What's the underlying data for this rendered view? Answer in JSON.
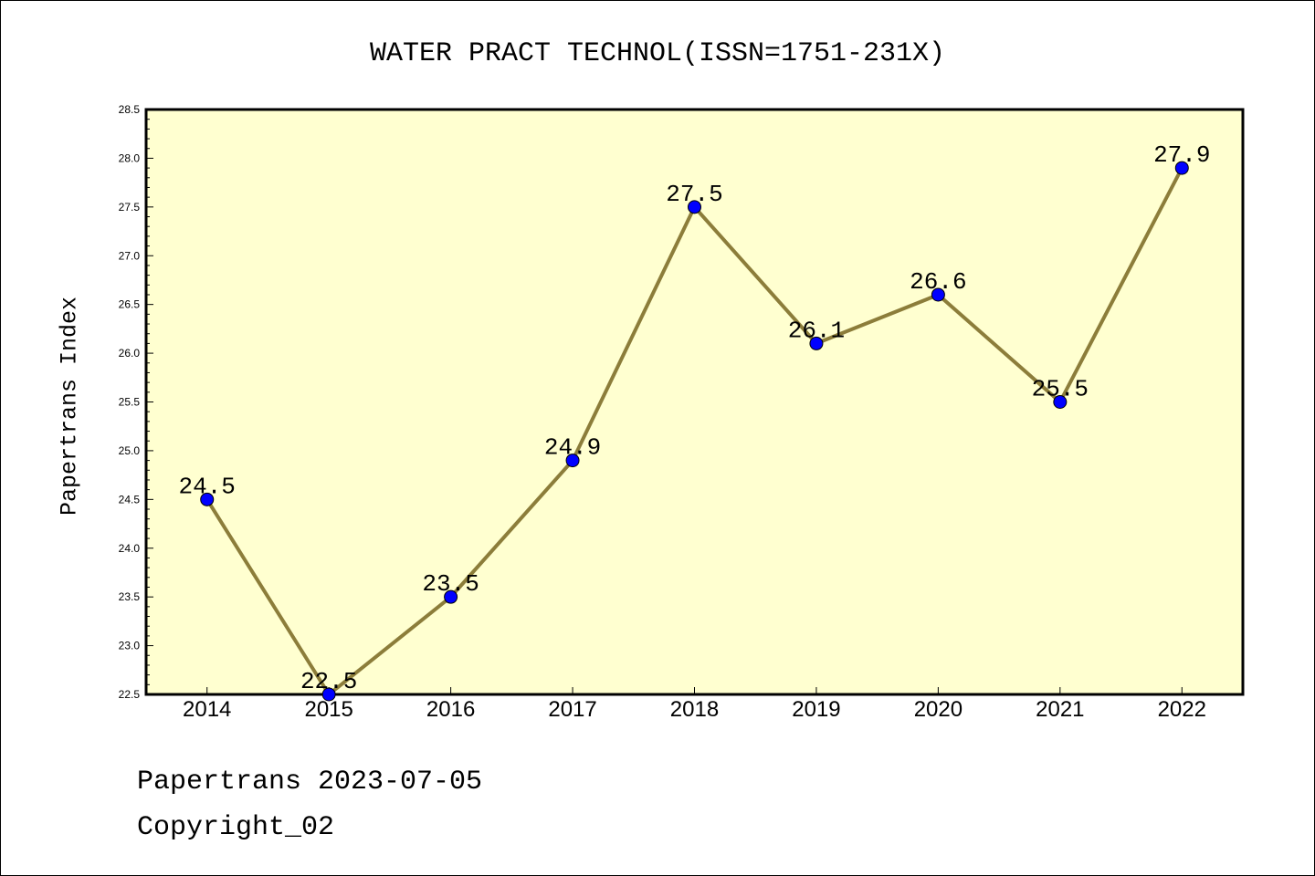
{
  "chart_data": {
    "type": "line",
    "title": "WATER PRACT TECHNOL(ISSN=1751-231X)",
    "xlabel": "",
    "ylabel": "Papertrans Index",
    "categories": [
      "2014",
      "2015",
      "2016",
      "2017",
      "2018",
      "2019",
      "2020",
      "2021",
      "2022"
    ],
    "series": [
      {
        "values": [
          24.5,
          22.5,
          23.5,
          24.9,
          27.5,
          26.1,
          26.6,
          25.5,
          27.9
        ]
      }
    ],
    "ylim": [
      22.5,
      28.5
    ],
    "y_ticks": [
      "22.5",
      "23.0",
      "23.5",
      "24.0",
      "24.5",
      "25.0",
      "25.5",
      "26.0",
      "26.5",
      "27.0",
      "27.5",
      "28.0",
      "28.5"
    ],
    "grid": false,
    "line_color": "#8C7D3A",
    "marker_color": "#0000FF",
    "plot_background": "#FFFFD0"
  },
  "footer": {
    "date_line": "Papertrans 2023-07-05",
    "copyright": "Copyright_02"
  }
}
